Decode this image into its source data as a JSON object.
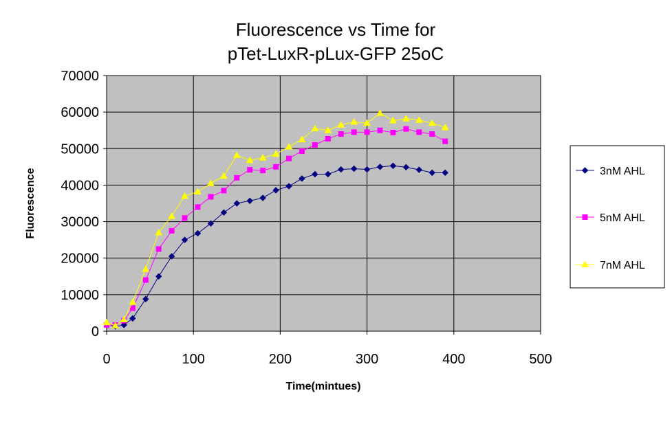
{
  "chart_data": {
    "type": "line",
    "title": [
      "Fluorescence vs Time for",
      "pTet-LuxR-pLux-GFP 25oC"
    ],
    "xlabel": "Time(mintues)",
    "ylabel": "Fluorescence",
    "xlim": [
      0,
      500
    ],
    "ylim": [
      0,
      70000
    ],
    "xticks": [
      0,
      100,
      200,
      300,
      400,
      500
    ],
    "yticks": [
      0,
      10000,
      20000,
      30000,
      40000,
      50000,
      60000,
      70000
    ],
    "xtick_labels": [
      "0",
      "100",
      "200",
      "300",
      "400",
      "500"
    ],
    "ytick_labels": [
      "0",
      "10000",
      "20000",
      "30000",
      "40000",
      "50000",
      "60000",
      "70000"
    ],
    "grid": true,
    "plot_background": "#C0C0C0",
    "legend_position": "right",
    "x": [
      0,
      10,
      20,
      30,
      45,
      60,
      75,
      90,
      105,
      120,
      135,
      150,
      165,
      180,
      195,
      210,
      225,
      240,
      255,
      270,
      285,
      300,
      315,
      330,
      345,
      360,
      375,
      390
    ],
    "series": [
      {
        "name": "3nM AHL",
        "color": "#000080",
        "marker": "diamond",
        "values": [
          2000,
          1300,
          1700,
          3500,
          8800,
          15000,
          20500,
          25000,
          26800,
          29500,
          32500,
          35000,
          35700,
          36500,
          38600,
          39700,
          41800,
          43000,
          43000,
          44300,
          44500,
          44300,
          45000,
          45300,
          44900,
          44200,
          43400,
          43400
        ]
      },
      {
        "name": "5nM AHL",
        "color": "#FF00FF",
        "marker": "square",
        "values": [
          1700,
          1700,
          2900,
          6300,
          14000,
          22500,
          27500,
          31000,
          34000,
          36800,
          38500,
          42000,
          44200,
          44000,
          45000,
          47300,
          49300,
          51000,
          52700,
          54000,
          54500,
          54500,
          55000,
          54400,
          55400,
          54500,
          54000,
          52000
        ]
      },
      {
        "name": "7nM AHL",
        "color": "#FFFF00",
        "marker": "triangle",
        "values": [
          2400,
          1500,
          3200,
          8000,
          17000,
          27000,
          31500,
          37000,
          38200,
          40500,
          42500,
          48200,
          46800,
          47500,
          48500,
          50500,
          52500,
          55500,
          55000,
          56500,
          57300,
          57000,
          59700,
          57700,
          58200,
          57800,
          57000,
          55800
        ]
      }
    ]
  }
}
